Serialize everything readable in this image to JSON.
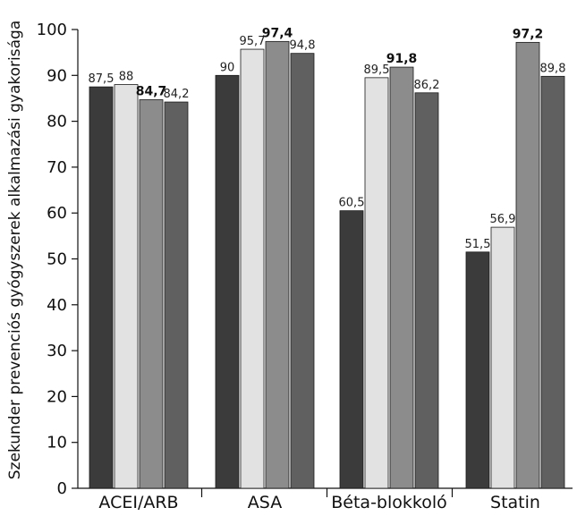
{
  "chart_data": {
    "type": "bar",
    "categories": [
      "ACEI/ARB",
      "ASA",
      "Béta-blokkoló",
      "Statin"
    ],
    "series": [
      {
        "color": "#3b3b3b",
        "values": [
          87.5,
          90,
          60.5,
          51.5
        ],
        "labels": [
          "87,5",
          "90",
          "60,5",
          "51,5"
        ],
        "bold": [
          false,
          false,
          false,
          false
        ]
      },
      {
        "color": "#e2e2e2",
        "values": [
          88,
          95.7,
          89.5,
          56.9
        ],
        "labels": [
          "88",
          "95,7",
          "89,5",
          "56,9"
        ],
        "bold": [
          false,
          false,
          false,
          false
        ]
      },
      {
        "color": "#8c8c8c",
        "values": [
          84.7,
          97.4,
          91.8,
          97.2
        ],
        "labels": [
          "84,7",
          "97,4",
          "91,8",
          "97,2"
        ],
        "bold": [
          true,
          true,
          true,
          true
        ]
      },
      {
        "color": "#606060",
        "values": [
          84.2,
          94.8,
          86.2,
          89.8
        ],
        "labels": [
          "84,2",
          "94,8",
          "86,2",
          "89,8"
        ],
        "bold": [
          false,
          false,
          false,
          false
        ]
      }
    ],
    "ylabel": "Szekunder prevenciós gyógyszerek alkalmazási gyakorisága",
    "ylim": [
      0,
      100
    ],
    "yticks": [
      0,
      10,
      20,
      30,
      40,
      50,
      60,
      70,
      80,
      90,
      100
    ],
    "grid": false
  }
}
